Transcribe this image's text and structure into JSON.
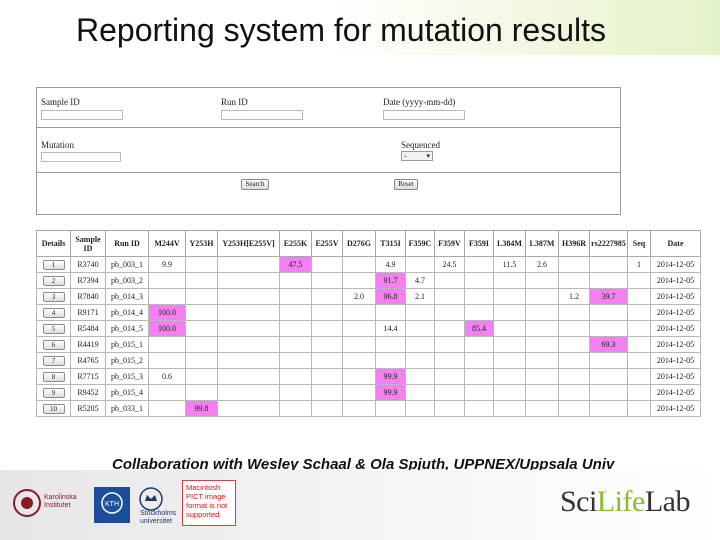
{
  "slide": {
    "title": "Reporting system for mutation results",
    "collaboration": "Collaboration with Wesley Schaal & Ola Spjuth, UPPNEX/Uppsala Univ"
  },
  "search_form": {
    "sample_id_label": "Sample ID",
    "run_id_label": "Run ID",
    "date_label": "Date (yyyy-mm-dd)",
    "mutation_label": "Mutation",
    "sequenced_label": "Sequenced",
    "sequenced_value": "-",
    "search_button": "Search",
    "reset_button": "Reset"
  },
  "results_table": {
    "columns": [
      "Details",
      "Sample ID",
      "Run ID",
      "M244V",
      "Y253H",
      "Y253H[E255V]",
      "E255K",
      "E255V",
      "D276G",
      "T315I",
      "F359C",
      "F359V",
      "F359I",
      "L384M",
      "L387M",
      "H396R",
      "rs2227985",
      "Seq",
      "Date"
    ],
    "rows": [
      {
        "details": "1",
        "sample": "R3740",
        "run": "pb_003_1",
        "cells": [
          "9.9",
          "",
          "",
          "47.5",
          "",
          "",
          "4.9",
          "",
          "24.5",
          "",
          "11.5",
          "2.6",
          "",
          "",
          "1"
        ],
        "date": "2014-12-05"
      },
      {
        "details": "2",
        "sample": "R7394",
        "run": "pb_003_2",
        "cells": [
          "",
          "",
          "",
          "",
          "",
          "",
          "91.7",
          "4.7",
          "",
          "",
          "",
          "",
          "",
          "",
          ""
        ],
        "date": "2014-12-05"
      },
      {
        "details": "3",
        "sample": "R7840",
        "run": "pb_014_3",
        "cells": [
          "",
          "",
          "",
          "",
          "",
          "2.0",
          "96.8",
          "2.1",
          "",
          "",
          "",
          "",
          "1.2",
          "39.7",
          ""
        ],
        "date": "2014-12-05"
      },
      {
        "details": "4",
        "sample": "R9171",
        "run": "pb_014_4",
        "cells": [
          "100.0",
          "",
          "",
          "",
          "",
          "",
          "",
          "",
          "",
          "",
          "",
          "",
          "",
          "",
          ""
        ],
        "date": "2014-12-05"
      },
      {
        "details": "5",
        "sample": "R5484",
        "run": "pb_014_5",
        "cells": [
          "100.0",
          "",
          "",
          "",
          "",
          "",
          "14.4",
          "",
          "",
          "85.4",
          "",
          "",
          "",
          "",
          ""
        ],
        "date": "2014-12-05"
      },
      {
        "details": "6",
        "sample": "R4419",
        "run": "pb_015_1",
        "cells": [
          "",
          "",
          "",
          "",
          "",
          "",
          "",
          "",
          "",
          "",
          "",
          "",
          "",
          "69.3",
          ""
        ],
        "date": "2014-12-05"
      },
      {
        "details": "7",
        "sample": "R4765",
        "run": "pb_015_2",
        "cells": [
          "",
          "",
          "",
          "",
          "",
          "",
          "",
          "",
          "",
          "",
          "",
          "",
          "",
          "",
          ""
        ],
        "date": "2014-12-05"
      },
      {
        "details": "8",
        "sample": "R7715",
        "run": "pb_015_3",
        "cells": [
          "0.6",
          "",
          "",
          "",
          "",
          "",
          "99.9",
          "",
          "",
          "",
          "",
          "",
          "",
          "",
          ""
        ],
        "date": "2014-12-05"
      },
      {
        "details": "9",
        "sample": "R9452",
        "run": "pb_015_4",
        "cells": [
          "",
          "",
          "",
          "",
          "",
          "",
          "99.9",
          "",
          "",
          "",
          "",
          "",
          "",
          "",
          ""
        ],
        "date": "2014-12-05"
      },
      {
        "details": "10",
        "sample": "R5205",
        "run": "pb_033_1",
        "cells": [
          "",
          "99.8",
          "",
          "",
          "",
          "",
          "",
          "",
          "",
          "",
          "",
          "",
          "",
          "",
          ""
        ],
        "date": "2014-12-05"
      }
    ],
    "highlight_color": "#f47ff0"
  },
  "footer": {
    "karolinska": "Karolinska Institutet",
    "kth": "KTH",
    "stockholm": "Stockholms universitet",
    "pict_notice": "Macintosh PICT image format is not supported",
    "scilifelab_a": "Sci",
    "scilifelab_b": "Life",
    "scilifelab_c": "Lab"
  }
}
